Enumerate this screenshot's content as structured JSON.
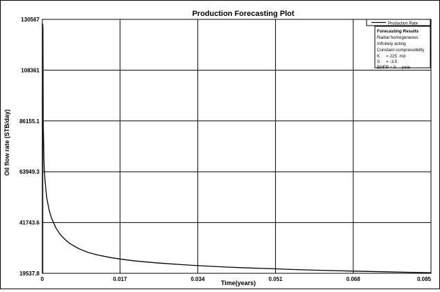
{
  "chart_data": {
    "type": "line",
    "title": "Production Forecasting Plot",
    "xlabel": "Time(years)",
    "ylabel": "Oil flow rate (STB/day)",
    "xlim": [
      0,
      0.085
    ],
    "ylim": [
      19537.8,
      130567
    ],
    "x_ticks": [
      "0",
      "0.017",
      "0.034",
      "0.051",
      "0.068",
      "0.085"
    ],
    "y_ticks": [
      "19537.8",
      "41743.6",
      "63949.3",
      "86155.1",
      "108361",
      "130567"
    ],
    "grid": true,
    "legend": {
      "placement": "top-right",
      "entries": [
        "Production Rate"
      ]
    },
    "annotation": {
      "title": "Forecasting Results",
      "lines": [
        "Radial homogeneous",
        "Infinitely acting",
        "Constant compressibility",
        "K     = 225  md",
        "S     = -3.5",
        "BHFP = 0     psia"
      ]
    },
    "series": [
      {
        "name": "Production Rate",
        "color": "#000000",
        "x": [
          0.0001,
          0.00015,
          0.0002,
          0.0004,
          0.0006,
          0.0008,
          0.001,
          0.0015,
          0.002,
          0.003,
          0.004,
          0.005,
          0.006,
          0.008,
          0.01,
          0.012,
          0.015,
          0.017,
          0.02,
          0.025,
          0.03,
          0.034,
          0.04,
          0.045,
          0.051,
          0.055,
          0.06,
          0.068,
          0.075,
          0.08,
          0.085
        ],
        "y": [
          128500,
          126000,
          86000,
          66500,
          60200,
          55800,
          52300,
          47200,
          43800,
          39300,
          36300,
          34300,
          32600,
          30300,
          28700,
          27600,
          26400,
          25800,
          25000,
          24100,
          23400,
          22900,
          22300,
          21900,
          21500,
          21200,
          20900,
          20500,
          20200,
          20000,
          19800
        ]
      }
    ]
  }
}
